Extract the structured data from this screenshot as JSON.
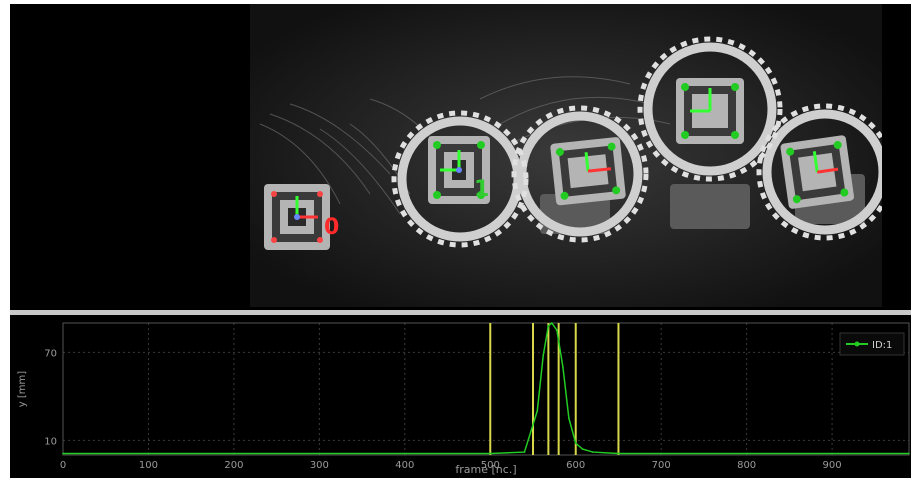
{
  "markers": [
    {
      "id": "0",
      "color": "#ff2a2a"
    },
    {
      "id": "1",
      "color": "#33cc33"
    }
  ],
  "chart_data": {
    "type": "line",
    "xlabel": "frame [nc.]",
    "ylabel": "y [mm]",
    "xlim": [
      0,
      990
    ],
    "ylim": [
      0,
      90
    ],
    "xticks": [
      "0",
      "100",
      "200",
      "300",
      "400",
      "500",
      "600",
      "700",
      "800",
      "900"
    ],
    "yticks": [
      "10",
      "70"
    ],
    "grid": true,
    "legend": {
      "position": "top-right",
      "entries": [
        "ID:1"
      ]
    },
    "series": [
      {
        "name": "ID:1",
        "color": "#22cc22",
        "x": [
          0,
          100,
          200,
          300,
          400,
          500,
          540,
          555,
          562,
          568,
          572,
          578,
          585,
          592,
          600,
          608,
          620,
          650,
          700,
          800,
          900,
          990
        ],
        "y": [
          1,
          1,
          1,
          1,
          1,
          1,
          2,
          30,
          68,
          88,
          90,
          85,
          60,
          25,
          8,
          4,
          2,
          1,
          1,
          1,
          1,
          1
        ]
      }
    ],
    "vlines": [
      500,
      550,
      568,
      580,
      600,
      650
    ],
    "vline_color": "#d8d84a"
  }
}
